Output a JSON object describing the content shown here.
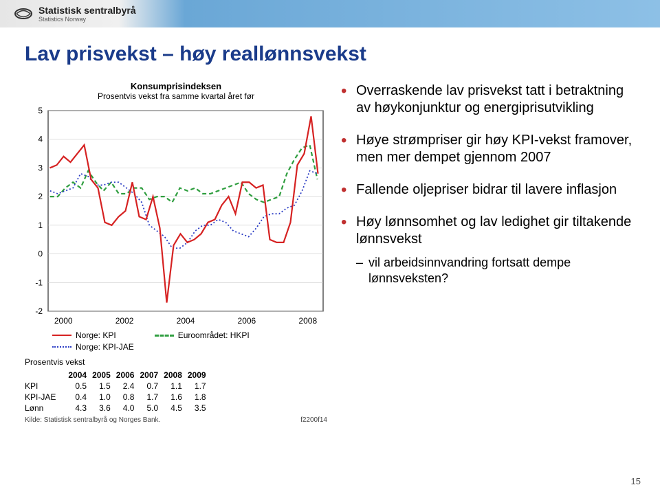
{
  "logo": {
    "name": "Statistisk sentralbyrå",
    "sub": "Statistics Norway"
  },
  "title": "Lav prisvekst – høy reallønnsvekst",
  "page_number": "15",
  "chart": {
    "title": "Konsumprisindeksen",
    "subtitle": "Prosentvis vekst fra samme kvartal året før",
    "ymin": -2,
    "ymax": 5,
    "ystep": 1,
    "xticks": [
      2000,
      2002,
      2004,
      2006,
      2008
    ],
    "xmin": 2000,
    "xmax": 2009,
    "colors": {
      "kpi": "#d62222",
      "kpijae": "#2a3cc4",
      "hkpi": "#2f9e3f",
      "grid": "#bfbfbf",
      "axis": "#000000",
      "bg": "#ffffff"
    },
    "series": {
      "kpi": [
        3.0,
        3.1,
        3.4,
        3.2,
        3.5,
        3.8,
        2.6,
        2.3,
        1.1,
        1.0,
        1.3,
        1.5,
        2.5,
        1.3,
        1.2,
        2.0,
        0.9,
        -1.7,
        0.3,
        0.7,
        0.4,
        0.5,
        0.7,
        1.1,
        1.2,
        1.7,
        2.0,
        1.4,
        2.5,
        2.5,
        2.3,
        2.4,
        0.5,
        0.4,
        0.4,
        1.1,
        3.1,
        3.5,
        4.8,
        2.8
      ],
      "kpijae": [
        2.2,
        2.1,
        2.2,
        2.3,
        2.8,
        2.7,
        2.4,
        2.4,
        2.5,
        2.5,
        2.3,
        2.1,
        1.8,
        1.0,
        0.8,
        0.6,
        0.2,
        0.2,
        0.4,
        0.8,
        1.0,
        1.0,
        1.2,
        1.1,
        0.8,
        0.7,
        0.6,
        0.9,
        1.3,
        1.4,
        1.4,
        1.6,
        1.7,
        2.2,
        2.9,
        2.8
      ],
      "hkpi": [
        2.0,
        2.0,
        2.3,
        2.5,
        2.3,
        2.9,
        2.5,
        2.2,
        2.5,
        2.1,
        2.1,
        2.3,
        2.3,
        1.9,
        2.0,
        2.0,
        1.8,
        2.3,
        2.2,
        2.3,
        2.1,
        2.1,
        2.2,
        2.3,
        2.4,
        2.5,
        2.1,
        1.9,
        1.8,
        1.9,
        2.0,
        2.8,
        3.3,
        3.7,
        3.8,
        2.6
      ]
    },
    "legend": {
      "kpi": "Norge: KPI",
      "kpijae": "Norge: KPI-JAE",
      "hkpi": "Euroområdet: HKPI"
    }
  },
  "table": {
    "title": "Prosentvis vekst",
    "cols": [
      "",
      "2004",
      "2005",
      "2006",
      "2007",
      "2008",
      "2009"
    ],
    "rows": [
      [
        "KPI",
        "0.5",
        "1.5",
        "2.4",
        "0.7",
        "1.1",
        "1.7"
      ],
      [
        "KPI-JAE",
        "0.4",
        "1.0",
        "0.8",
        "1.7",
        "1.6",
        "1.8"
      ],
      [
        "Lønn",
        "4.3",
        "3.6",
        "4.0",
        "5.0",
        "4.5",
        "3.5"
      ]
    ],
    "source": "Kilde: Statistisk sentralbyrå og Norges Bank.",
    "fig_id": "f2200f14"
  },
  "bullets": [
    "Overraskende lav prisvekst tatt i betraktning av høykonjunktur og energiprisutvikling",
    "Høye strømpriser gir høy KPI-vekst framover, men mer dempet gjennom 2007",
    "Fallende oljepriser bidrar til lavere inflasjon",
    "Høy lønnsomhet og lav ledighet gir tiltakende lønnsvekst"
  ],
  "sub_bullet": "vil arbeidsinnvandring fortsatt dempe lønnsveksten?"
}
